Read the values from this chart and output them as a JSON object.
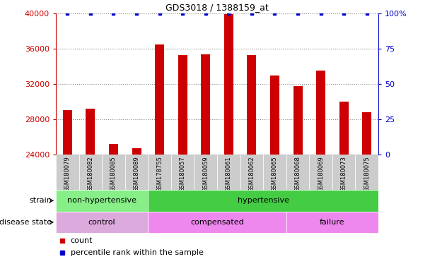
{
  "title": "GDS3018 / 1388159_at",
  "samples": [
    "GSM180079",
    "GSM180082",
    "GSM180085",
    "GSM180089",
    "GSM178755",
    "GSM180057",
    "GSM180059",
    "GSM180061",
    "GSM180062",
    "GSM180065",
    "GSM180068",
    "GSM180069",
    "GSM180073",
    "GSM180075"
  ],
  "counts": [
    29000,
    29200,
    25200,
    24700,
    36500,
    35300,
    35400,
    39900,
    35300,
    33000,
    31800,
    33500,
    30000,
    28800
  ],
  "percentile_ranks": [
    100,
    100,
    100,
    100,
    100,
    100,
    100,
    100,
    100,
    100,
    100,
    100,
    100,
    100
  ],
  "bar_color": "#cc0000",
  "percentile_color": "#0000cc",
  "ylim_left": [
    24000,
    40000
  ],
  "ylim_right": [
    0,
    100
  ],
  "yticks_left": [
    24000,
    28000,
    32000,
    36000,
    40000
  ],
  "yticks_right": [
    0,
    25,
    50,
    75,
    100
  ],
  "ytick_labels_right": [
    "0",
    "25",
    "50",
    "75",
    "100%"
  ],
  "grid_color": "#888888",
  "strain_segs": [
    {
      "label": "non-hypertensive",
      "start": 0,
      "end": 4,
      "color": "#88ee88"
    },
    {
      "label": "hypertensive",
      "start": 4,
      "end": 14,
      "color": "#44cc44"
    }
  ],
  "disease_segs": [
    {
      "label": "control",
      "start": 0,
      "end": 4,
      "color": "#ddaadd"
    },
    {
      "label": "compensated",
      "start": 4,
      "end": 10,
      "color": "#ee88ee"
    },
    {
      "label": "failure",
      "start": 10,
      "end": 14,
      "color": "#ee88ee"
    }
  ],
  "tick_bg_color": "#cccccc",
  "bar_width": 0.4,
  "legend_count_color": "#cc0000",
  "legend_pct_color": "#0000cc"
}
